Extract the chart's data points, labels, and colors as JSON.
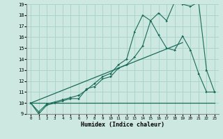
{
  "xlabel": "Humidex (Indice chaleur)",
  "xlim": [
    -0.5,
    23.5
  ],
  "ylim": [
    9,
    19
  ],
  "xticks": [
    0,
    1,
    2,
    3,
    4,
    5,
    6,
    7,
    8,
    9,
    10,
    11,
    12,
    13,
    14,
    15,
    16,
    17,
    18,
    19,
    20,
    21,
    22,
    23
  ],
  "yticks": [
    9,
    10,
    11,
    12,
    13,
    14,
    15,
    16,
    17,
    18,
    19
  ],
  "bg_color": "#cce8e0",
  "line_color": "#1a6b5a",
  "grid_color": "#aad4ca",
  "line1_x": [
    0,
    1,
    2,
    3,
    4,
    5,
    6,
    7,
    8,
    9,
    10,
    11,
    12,
    13,
    14,
    15,
    16,
    17,
    18,
    19,
    20,
    21,
    22,
    23
  ],
  "line1_y": [
    10.0,
    9.0,
    9.8,
    10.0,
    10.2,
    10.4,
    10.4,
    11.3,
    11.5,
    12.2,
    12.4,
    13.2,
    13.5,
    14.2,
    15.2,
    17.5,
    18.2,
    17.5,
    19.2,
    19.0,
    18.8,
    19.2,
    13.0,
    11.0
  ],
  "line2_x": [
    0,
    1,
    2,
    3,
    4,
    5,
    6,
    7,
    8,
    9,
    10,
    11,
    12,
    13,
    14,
    15,
    16,
    17,
    18,
    19,
    20,
    21,
    22,
    23
  ],
  "line2_y": [
    10.0,
    9.2,
    9.9,
    10.1,
    10.3,
    10.5,
    10.7,
    11.2,
    11.8,
    12.4,
    12.7,
    13.5,
    14.0,
    16.5,
    18.0,
    17.5,
    16.2,
    15.0,
    14.8,
    16.1,
    14.8,
    12.7,
    11.0,
    11.0
  ],
  "line3_x": [
    0,
    23
  ],
  "line3_y": [
    10.0,
    10.0
  ],
  "line4_x": [
    0,
    19
  ],
  "line4_y": [
    10.0,
    15.5
  ]
}
